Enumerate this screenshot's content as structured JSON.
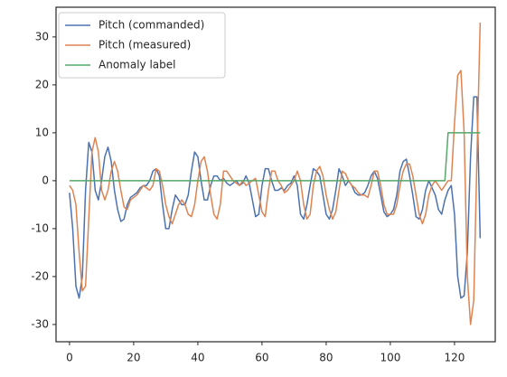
{
  "chart_data": {
    "type": "line",
    "x": [
      0,
      1,
      2,
      3,
      4,
      5,
      6,
      7,
      8,
      9,
      10,
      11,
      12,
      13,
      14,
      15,
      16,
      17,
      18,
      19,
      20,
      21,
      22,
      23,
      24,
      25,
      26,
      27,
      28,
      29,
      30,
      31,
      32,
      33,
      34,
      35,
      36,
      37,
      38,
      39,
      40,
      41,
      42,
      43,
      44,
      45,
      46,
      47,
      48,
      49,
      50,
      51,
      52,
      53,
      54,
      55,
      56,
      57,
      58,
      59,
      60,
      61,
      62,
      63,
      64,
      65,
      66,
      67,
      68,
      69,
      70,
      71,
      72,
      73,
      74,
      75,
      76,
      77,
      78,
      79,
      80,
      81,
      82,
      83,
      84,
      85,
      86,
      87,
      88,
      89,
      90,
      91,
      92,
      93,
      94,
      95,
      96,
      97,
      98,
      99,
      100,
      101,
      102,
      103,
      104,
      105,
      106,
      107,
      108,
      109,
      110,
      111,
      112,
      113,
      114,
      115,
      116,
      117,
      118,
      119,
      120,
      121,
      122,
      123,
      124,
      125,
      126,
      127,
      128
    ],
    "series": [
      {
        "name": "Pitch (commanded)",
        "color": "#4c72b0",
        "values": [
          -2.5,
          -10,
          -22,
          -24.5,
          -20,
          -2,
          8,
          6,
          -2,
          -4,
          0,
          5,
          7,
          4,
          -2,
          -6,
          -8.5,
          -8,
          -5,
          -3.5,
          -3,
          -2.5,
          -1.5,
          -1,
          -1,
          0,
          2,
          2.5,
          1,
          -5,
          -10,
          -10,
          -6,
          -3,
          -4,
          -5,
          -5,
          -3,
          2,
          6,
          5,
          0,
          -4,
          -4,
          -1,
          1,
          1,
          0,
          0.5,
          -0.5,
          -1,
          -0.5,
          0,
          -1,
          -0.5,
          1,
          -0.5,
          -4,
          -7.5,
          -7,
          -1,
          2.5,
          2.5,
          0,
          -2,
          -2,
          -1.5,
          -2,
          -1,
          -0.5,
          1,
          -1,
          -7,
          -8,
          -5,
          -1,
          2.5,
          2,
          1,
          -3,
          -7,
          -8,
          -6,
          -2,
          2.5,
          1,
          -1,
          0,
          -1,
          -2.5,
          -3,
          -3,
          -2.5,
          -1,
          1,
          2,
          0.5,
          -3,
          -6.5,
          -7.5,
          -7,
          -6,
          -3,
          2,
          4,
          4.5,
          1,
          -3,
          -7.5,
          -8,
          -6,
          -2,
          0,
          -1.5,
          -3,
          -6,
          -7,
          -4,
          -2,
          -1,
          -7,
          -20,
          -24.5,
          -24,
          -15,
          5,
          17.5,
          17.5,
          -12
        ]
      },
      {
        "name": "Pitch (measured)",
        "color": "#dd8452",
        "values": [
          -1,
          -2,
          -5,
          -15,
          -23,
          -22,
          -8,
          6,
          9,
          6,
          -2,
          -4,
          -2,
          2,
          4,
          2,
          -2,
          -5.5,
          -6,
          -4,
          -3.5,
          -3,
          -2,
          -1,
          -1.5,
          -2,
          -1,
          2.5,
          2,
          -1,
          -5,
          -7.5,
          -9,
          -7,
          -5,
          -4,
          -5,
          -7,
          -7.5,
          -5,
          0,
          4,
          5,
          2,
          -3,
          -7,
          -8,
          -5,
          2,
          2,
          1,
          0,
          -0.5,
          -1,
          0,
          -1,
          -0.5,
          0,
          0.5,
          -3,
          -6.5,
          -7.5,
          -2,
          2,
          2,
          0,
          -1,
          -2.5,
          -2,
          -1,
          0,
          2,
          0,
          -5,
          -8,
          -7,
          -1,
          2,
          3,
          1,
          -3,
          -6,
          -8,
          -6.5,
          -2,
          2,
          1.5,
          0,
          -1,
          -1.5,
          -2.5,
          -3,
          -3,
          -3.5,
          -1,
          2,
          2,
          -1,
          -5,
          -7,
          -7,
          -7,
          -5,
          -1,
          2,
          3.5,
          3.5,
          1,
          -3,
          -7,
          -9,
          -7,
          -3,
          -1,
          0,
          -1,
          -2,
          -1,
          0,
          0,
          12,
          22,
          23,
          10,
          -20,
          -30,
          -25,
          5,
          33
        ]
      },
      {
        "name": "Anomaly label",
        "color": "#55a868",
        "values": [
          0,
          0,
          0,
          0,
          0,
          0,
          0,
          0,
          0,
          0,
          0,
          0,
          0,
          0,
          0,
          0,
          0,
          0,
          0,
          0,
          0,
          0,
          0,
          0,
          0,
          0,
          0,
          0,
          0,
          0,
          0,
          0,
          0,
          0,
          0,
          0,
          0,
          0,
          0,
          0,
          0,
          0,
          0,
          0,
          0,
          0,
          0,
          0,
          0,
          0,
          0,
          0,
          0,
          0,
          0,
          0,
          0,
          0,
          0,
          0,
          0,
          0,
          0,
          0,
          0,
          0,
          0,
          0,
          0,
          0,
          0,
          0,
          0,
          0,
          0,
          0,
          0,
          0,
          0,
          0,
          0,
          0,
          0,
          0,
          0,
          0,
          0,
          0,
          0,
          0,
          0,
          0,
          0,
          0,
          0,
          0,
          0,
          0,
          0,
          0,
          0,
          0,
          0,
          0,
          0,
          0,
          0,
          0,
          0,
          0,
          0,
          0,
          0,
          0,
          0,
          0,
          0,
          0,
          10,
          10,
          10,
          10,
          10,
          10,
          10,
          10,
          10,
          10,
          10
        ]
      }
    ],
    "xlim": [
      -4.2,
      132.7
    ],
    "ylim": [
      -33.6,
      36.2
    ],
    "xticks": [
      0,
      20,
      40,
      60,
      80,
      100,
      120
    ],
    "yticks": [
      -30,
      -20,
      -10,
      0,
      10,
      20,
      30
    ],
    "grid": false,
    "legend": "upper left"
  }
}
